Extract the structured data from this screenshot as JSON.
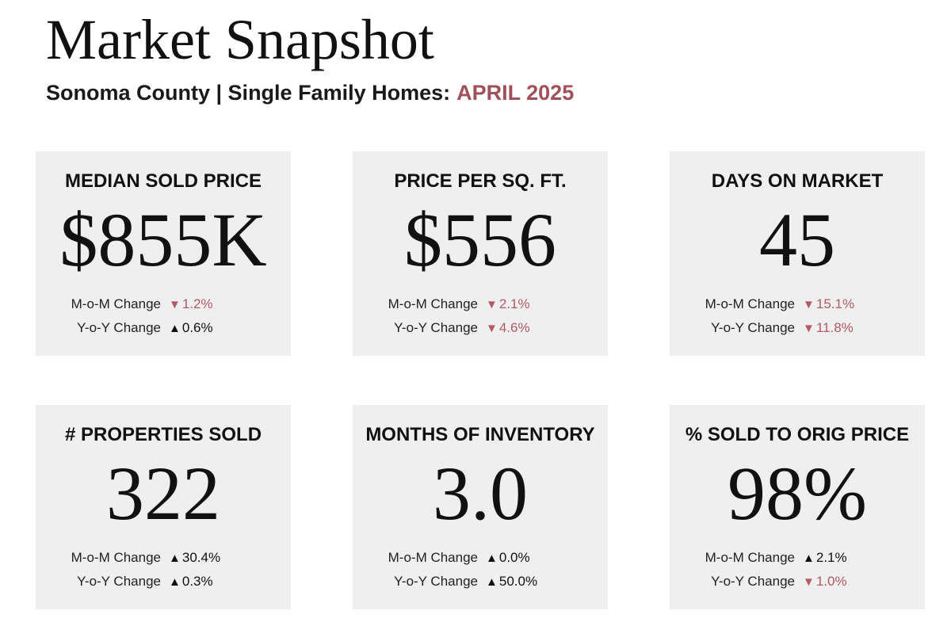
{
  "header": {
    "title": "Market Snapshot",
    "subtitle": "Sonoma County | Single Family Homes:",
    "date": "APRIL 2025"
  },
  "colors": {
    "accent": "#a05058",
    "down": "#b25a62",
    "card_bg": "#efefef"
  },
  "cards": [
    {
      "label": "MEDIAN SOLD PRICE",
      "value": "$855K",
      "mom_label": "M-o-M Change",
      "mom_dir": "down",
      "mom_arrow": "▼",
      "mom_value": "1.2%",
      "yoy_label": "Y-o-Y Change",
      "yoy_dir": "up",
      "yoy_arrow": "▲",
      "yoy_value": "0.6%"
    },
    {
      "label": "PRICE PER SQ. FT.",
      "value": "$556",
      "mom_label": "M-o-M Change",
      "mom_dir": "down",
      "mom_arrow": "▼",
      "mom_value": "2.1%",
      "yoy_label": "Y-o-Y Change",
      "yoy_dir": "down",
      "yoy_arrow": "▼",
      "yoy_value": "4.6%"
    },
    {
      "label": "DAYS ON MARKET",
      "value": "45",
      "mom_label": "M-o-M Change",
      "mom_dir": "down",
      "mom_arrow": "▼",
      "mom_value": "15.1%",
      "yoy_label": "Y-o-Y Change",
      "yoy_dir": "down",
      "yoy_arrow": "▼",
      "yoy_value": "11.8%"
    },
    {
      "label": "# PROPERTIES SOLD",
      "value": "322",
      "mom_label": "M-o-M Change",
      "mom_dir": "up",
      "mom_arrow": "▲",
      "mom_value": "30.4%",
      "yoy_label": "Y-o-Y Change",
      "yoy_dir": "up",
      "yoy_arrow": "▲",
      "yoy_value": "0.3%"
    },
    {
      "label": "MONTHS OF INVENTORY",
      "value": "3.0",
      "mom_label": "M-o-M Change",
      "mom_dir": "up",
      "mom_arrow": "▲",
      "mom_value": "0.0%",
      "yoy_label": "Y-o-Y Change",
      "yoy_dir": "up",
      "yoy_arrow": "▲",
      "yoy_value": "50.0%"
    },
    {
      "label": "% SOLD TO ORIG PRICE",
      "value": "98%",
      "mom_label": "M-o-M Change",
      "mom_dir": "up",
      "mom_arrow": "▲",
      "mom_value": "2.1%",
      "yoy_label": "Y-o-Y Change",
      "yoy_dir": "down",
      "yoy_arrow": "▼",
      "yoy_value": "1.0%"
    }
  ]
}
